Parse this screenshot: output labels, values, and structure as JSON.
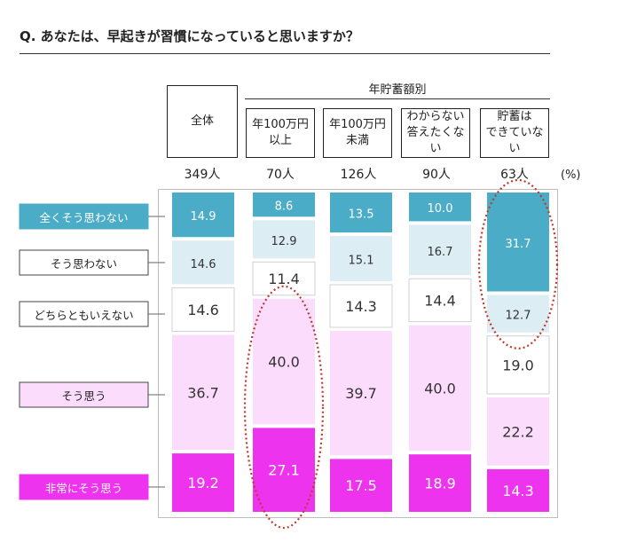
{
  "question": "Q.  あなたは、早起きが習慣になっていると思いますか？",
  "group_header": "年貯蓄額別",
  "unit_label": "(%)",
  "colors": {
    "series": [
      "#4aacc6",
      "#dcedf4",
      "#ffffff",
      "#fcdcfc",
      "#ee33ee"
    ],
    "label_text": [
      "#ffffff",
      "#333333",
      "#333333",
      "#333333",
      "#ffffff"
    ],
    "highlight": "#c0392b"
  },
  "chart_data": {
    "type": "bar",
    "stacked": true,
    "normalized_to": 100,
    "categories": [
      "全体",
      "年100万円\n以上",
      "年100万円\n未満",
      "わからない\n答えたくない",
      "貯蓄は\nできていない"
    ],
    "counts": [
      "349人",
      "70人",
      "126人",
      "90人",
      "63人"
    ],
    "series": [
      {
        "name": "全くそう思わない",
        "values": [
          14.9,
          8.6,
          13.5,
          10.0,
          31.7
        ]
      },
      {
        "name": "そう思わない",
        "values": [
          14.6,
          12.9,
          15.1,
          16.7,
          12.7
        ]
      },
      {
        "name": "どちらともいえない",
        "values": [
          14.6,
          11.4,
          14.3,
          14.4,
          19.0
        ]
      },
      {
        "name": "そう思う",
        "values": [
          36.7,
          40.0,
          39.7,
          40.0,
          22.2
        ]
      },
      {
        "name": "非常にそう思う",
        "values": [
          19.2,
          27.1,
          17.5,
          18.9,
          14.3
        ]
      }
    ],
    "value_labels": [
      [
        "14.9",
        "8.6",
        "13.5",
        "10.0",
        "31.7"
      ],
      [
        "14.6",
        "12.9",
        "15.1",
        "16.7",
        "12.7"
      ],
      [
        "14.6",
        "11.4",
        "14.3",
        "14.4",
        "19.0"
      ],
      [
        "36.7",
        "40.0",
        "39.7",
        "40.0",
        "22.2"
      ],
      [
        "19.2",
        "27.1",
        "17.5",
        "18.9",
        "14.3"
      ]
    ],
    "ylim": [
      0,
      100
    ],
    "grid": false,
    "legend": "left",
    "highlights": [
      {
        "category_index": 1,
        "series": [
          "そう思う",
          "非常にそう思う"
        ]
      },
      {
        "category_index": 4,
        "series": [
          "全くそう思わない",
          "そう思わない"
        ]
      }
    ]
  }
}
